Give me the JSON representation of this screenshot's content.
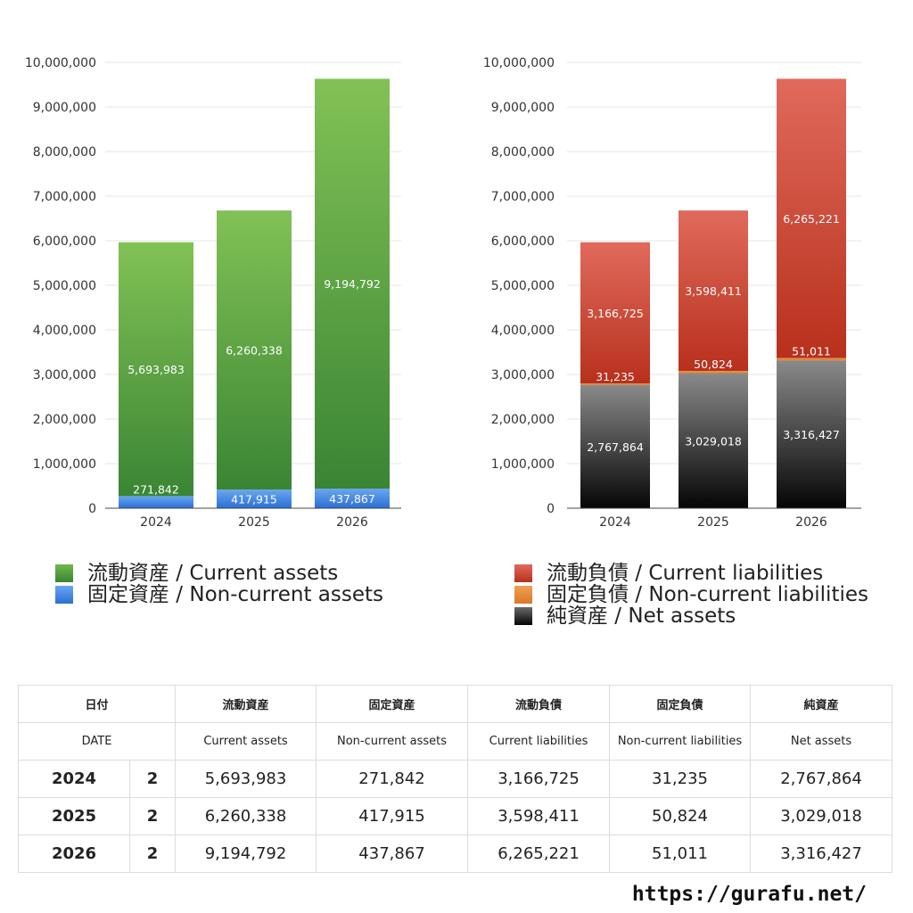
{
  "chart_data": [
    {
      "type": "bar",
      "stacked": true,
      "categories": [
        "2024",
        "2025",
        "2026"
      ],
      "ylim": [
        0,
        10000000
      ],
      "yticks": [
        0,
        1000000,
        2000000,
        3000000,
        4000000,
        5000000,
        6000000,
        7000000,
        8000000,
        9000000,
        10000000
      ],
      "ytick_labels": [
        "0",
        "1,000,000",
        "2,000,000",
        "3,000,000",
        "4,000,000",
        "5,000,000",
        "6,000,000",
        "7,000,000",
        "8,000,000",
        "9,000,000",
        "10,000,000"
      ],
      "grid": true,
      "legend_position": "bottom",
      "series": [
        {
          "name": "固定資産 / Non-current assets",
          "values": [
            271842,
            417915,
            437867
          ],
          "labels": [
            "271,842",
            "417,915",
            "437,867"
          ],
          "color": "#3a7fe0"
        },
        {
          "name": "流動資産 / Current assets",
          "values": [
            5693983,
            6260338,
            9194792
          ],
          "labels": [
            "5,693,983",
            "6,260,338",
            "9,194,792"
          ],
          "color": "#5aa544"
        }
      ]
    },
    {
      "type": "bar",
      "stacked": true,
      "categories": [
        "2024",
        "2025",
        "2026"
      ],
      "ylim": [
        0,
        10000000
      ],
      "yticks": [
        0,
        1000000,
        2000000,
        3000000,
        4000000,
        5000000,
        6000000,
        7000000,
        8000000,
        9000000,
        10000000
      ],
      "ytick_labels": [
        "0",
        "1,000,000",
        "2,000,000",
        "3,000,000",
        "4,000,000",
        "5,000,000",
        "6,000,000",
        "7,000,000",
        "8,000,000",
        "9,000,000",
        "10,000,000"
      ],
      "grid": true,
      "legend_position": "bottom",
      "series": [
        {
          "name": "純資産 / Net assets",
          "values": [
            2767864,
            3029018,
            3316427
          ],
          "labels": [
            "2,767,864",
            "3,029,018",
            "3,316,427"
          ],
          "color": "#333333"
        },
        {
          "name": "固定負債 / Non-current liabilities",
          "values": [
            31235,
            50824,
            51011
          ],
          "labels": [
            "31,235",
            "50,824",
            "51,011"
          ],
          "color": "#e8892f"
        },
        {
          "name": "流動負債 / Current liabilities",
          "values": [
            3166725,
            3598411,
            6265221
          ],
          "labels": [
            "3,166,725",
            "3,598,411",
            "6,265,221"
          ],
          "color": "#cf3f2c"
        }
      ]
    }
  ],
  "legend_left": [
    {
      "label": "流動資産 / Current assets",
      "color": "#5aa544"
    },
    {
      "label": "固定資産 / Non-current assets",
      "color": "#3a7fe0"
    }
  ],
  "legend_right": [
    {
      "label": "流動負債 / Current liabilities",
      "color": "#cf3f2c"
    },
    {
      "label": "固定負債 / Non-current liabilities",
      "color": "#e8892f"
    },
    {
      "label": "純資産 / Net assets",
      "color": "#333333"
    }
  ],
  "table": {
    "headers_ja": [
      "日付",
      "流動資産",
      "固定資産",
      "流動負債",
      "固定負債",
      "純資産"
    ],
    "headers_en": [
      "DATE",
      "Current assets",
      "Non-current assets",
      "Current liabilities",
      "Non-current liabilities",
      "Net assets"
    ],
    "rows": [
      {
        "year": "2024",
        "count": "2",
        "values": [
          "5,693,983",
          "271,842",
          "3,166,725",
          "31,235",
          "2,767,864"
        ]
      },
      {
        "year": "2025",
        "count": "2",
        "values": [
          "6,260,338",
          "417,915",
          "3,598,411",
          "50,824",
          "3,029,018"
        ]
      },
      {
        "year": "2026",
        "count": "2",
        "values": [
          "9,194,792",
          "437,867",
          "6,265,221",
          "51,011",
          "3,316,427"
        ]
      }
    ]
  },
  "footer": {
    "url": "https://gurafu.net/"
  }
}
